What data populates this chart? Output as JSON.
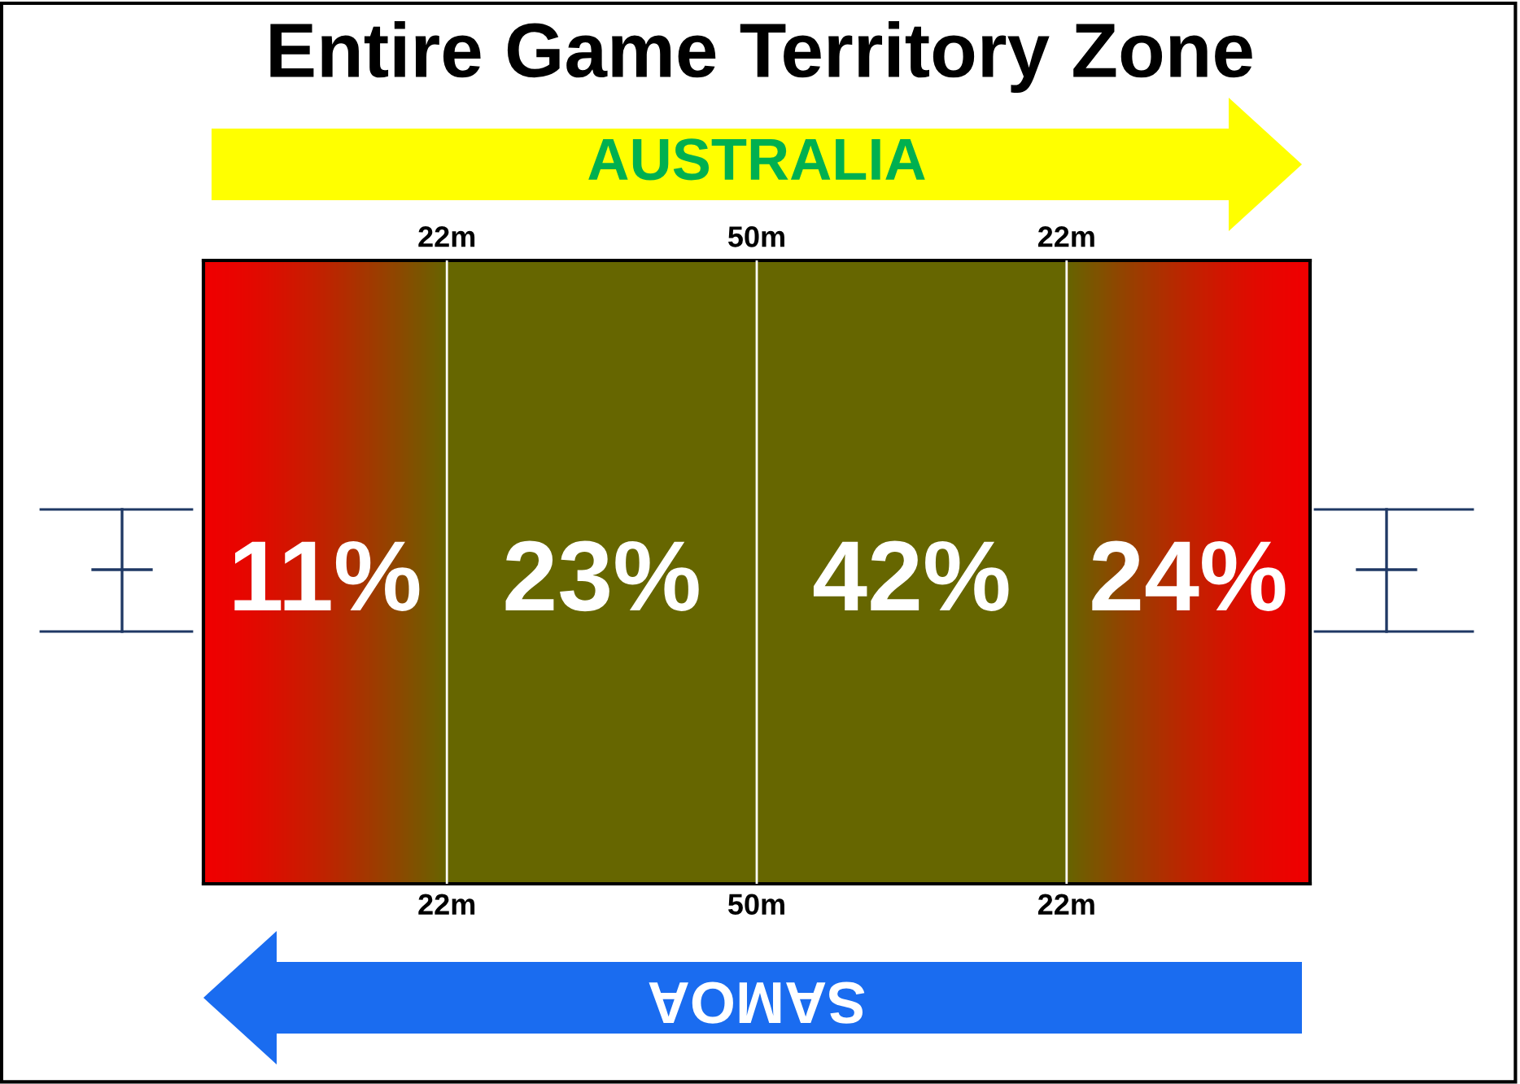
{
  "chart_data": {
    "type": "other",
    "title": "Entire Game Territory Zone",
    "categories": [
      null,
      null,
      null,
      null
    ],
    "values": [
      11,
      23,
      42,
      24
    ],
    "value_labels": [
      "11%",
      "23%",
      "42%",
      "24%"
    ],
    "colors": [
      "#f00000",
      "#666600",
      "#666600",
      "#f00000"
    ],
    "annotations": [
      "AUSTRALIA",
      "SAMOA",
      "22m",
      "50m",
      "22m",
      "22m",
      "50m",
      "22m"
    ]
  }
}
